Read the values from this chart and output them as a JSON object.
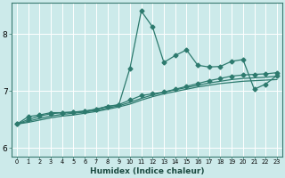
{
  "xlabel": "Humidex (Indice chaleur)",
  "ylabel": "",
  "bg_color": "#cceaea",
  "grid_color": "#b0d8d8",
  "line_color": "#2d7a6e",
  "xlim": [
    -0.5,
    23.5
  ],
  "ylim": [
    5.85,
    8.55
  ],
  "yticks": [
    6,
    7,
    8
  ],
  "xticks": [
    0,
    1,
    2,
    3,
    4,
    5,
    6,
    7,
    8,
    9,
    10,
    11,
    12,
    13,
    14,
    15,
    16,
    17,
    18,
    19,
    20,
    21,
    22,
    23
  ],
  "series1_x": [
    0,
    1,
    2,
    3,
    4,
    5,
    6,
    7,
    8,
    9,
    10,
    11,
    12,
    13,
    14,
    15,
    16,
    17,
    18,
    19,
    20,
    21,
    22,
    23
  ],
  "series1_y": [
    6.42,
    6.55,
    6.58,
    6.62,
    6.62,
    6.63,
    6.64,
    6.68,
    6.73,
    6.75,
    7.4,
    8.4,
    8.12,
    7.5,
    7.62,
    7.72,
    7.45,
    7.42,
    7.43,
    7.52,
    7.55,
    7.03,
    7.12,
    7.27
  ],
  "series2_x": [
    0,
    1,
    2,
    3,
    4,
    5,
    6,
    7,
    8,
    9,
    10,
    11,
    12,
    13,
    14,
    15,
    16,
    17,
    18,
    19,
    20,
    21,
    22,
    23
  ],
  "series2_y": [
    6.42,
    6.5,
    6.56,
    6.6,
    6.62,
    6.63,
    6.65,
    6.68,
    6.73,
    6.76,
    6.84,
    6.92,
    6.95,
    6.98,
    7.03,
    7.08,
    7.13,
    7.18,
    7.22,
    7.26,
    7.28,
    7.29,
    7.3,
    7.32
  ],
  "series3_x": [
    0,
    1,
    2,
    3,
    4,
    5,
    6,
    7,
    8,
    9,
    10,
    11,
    12,
    13,
    14,
    15,
    16,
    17,
    18,
    19,
    20,
    21,
    22,
    23
  ],
  "series3_y": [
    6.42,
    6.47,
    6.52,
    6.56,
    6.59,
    6.61,
    6.63,
    6.66,
    6.7,
    6.74,
    6.8,
    6.87,
    6.93,
    6.98,
    7.02,
    7.06,
    7.1,
    7.14,
    7.17,
    7.2,
    7.22,
    7.23,
    7.24,
    7.26
  ],
  "series4_x": [
    0,
    1,
    2,
    3,
    4,
    5,
    6,
    7,
    8,
    9,
    10,
    11,
    12,
    13,
    14,
    15,
    16,
    17,
    18,
    19,
    20,
    21,
    22,
    23
  ],
  "series4_y": [
    6.42,
    6.45,
    6.49,
    6.53,
    6.56,
    6.58,
    6.61,
    6.64,
    6.68,
    6.72,
    6.77,
    6.84,
    6.9,
    6.95,
    6.99,
    7.03,
    7.07,
    7.1,
    7.13,
    7.15,
    7.17,
    7.18,
    7.19,
    7.2
  ]
}
